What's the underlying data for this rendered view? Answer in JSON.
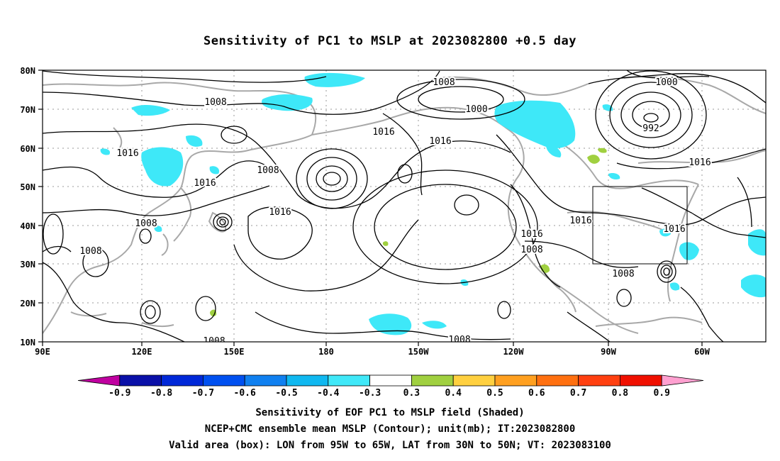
{
  "title": "Sensitivity of PC1 to MSLP at 2023082800 +0.5 day",
  "lat_labels": [
    "80N",
    "70N",
    "60N",
    "50N",
    "40N",
    "30N",
    "20N",
    "10N"
  ],
  "lon_labels": [
    "90E",
    "120E",
    "150E",
    "180",
    "150W",
    "120W",
    "90W",
    "60W"
  ],
  "contour_labels": [
    "1008",
    "1000",
    "1000",
    "992",
    "1008",
    "1016",
    "1016",
    "1016",
    "1008",
    "1016",
    "1016",
    "1016",
    "1008",
    "1016",
    "1008",
    "1016",
    "1016",
    "1008",
    "1008",
    "1008",
    "1008"
  ],
  "colorbar": {
    "colors": [
      "#c000a0",
      "#0a10a8",
      "#0028d8",
      "#0050f0",
      "#1080f0",
      "#10b8f0",
      "#40e8f8",
      "#ffffff",
      "#a0d040",
      "#ffd040",
      "#ffa020",
      "#ff7010",
      "#ff4010",
      "#f01000",
      "#ffa0d0"
    ],
    "labels": [
      "-0.9",
      "-0.8",
      "-0.7",
      "-0.6",
      "-0.5",
      "-0.4",
      "-0.3",
      "0.3",
      "0.4",
      "0.5",
      "0.6",
      "0.7",
      "0.8",
      "0.9"
    ]
  },
  "valid_box": {
    "lon_min": -95,
    "lon_max": -65,
    "lat_min": 30,
    "lat_max": 50
  },
  "captions": {
    "line1": "Sensitivity of EOF PC1 to MSLP field (Shaded)",
    "line2": "NCEP+CMC ensemble mean MSLP (Contour); unit(mb); IT:2023082800",
    "line3": "Valid area (box): LON from 95W to 65W, LAT from 30N to 50N; VT: 2023083100"
  }
}
